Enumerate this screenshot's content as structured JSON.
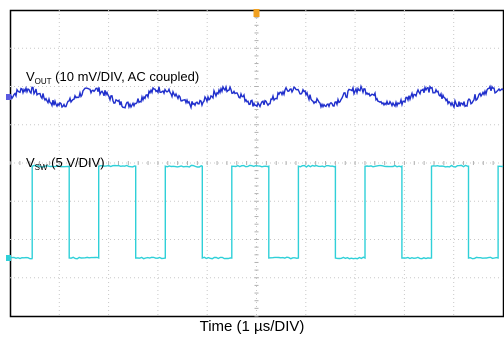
{
  "chart_data": {
    "type": "line",
    "title": "",
    "xlabel": "Time (1 µs/DIV)",
    "grid": true,
    "grid_divisions": {
      "x": 10,
      "y": 8
    },
    "x_unit": "µs",
    "x_range_us": [
      0,
      10
    ],
    "series": [
      {
        "name_main": "V",
        "name_sub": "OUT",
        "name_rest": " (10 mV/DIV, AC coupled)",
        "color": "#1f2ecc",
        "marker_color": "#5a5ae0",
        "coupling": "AC",
        "scale_mV_per_div": 10,
        "ripple_period_us": 1.35,
        "ripple_peak_to_peak_mV": 4,
        "noise_mV": 0.6
      },
      {
        "name_main": "V",
        "name_sub": "SW",
        "name_rest": " (5 V/DIV)",
        "color": "#2fd0d8",
        "marker_color": "#2fd0d8",
        "scale_V_per_div": 5,
        "low_V": 0,
        "high_V": 12,
        "period_us": 1.35,
        "rise_us": [
          0.45,
          1.8,
          3.15,
          4.5,
          5.85,
          7.2,
          8.55,
          9.9
        ],
        "fall_us": [
          1.2,
          2.55,
          3.9,
          5.25,
          6.6,
          7.95,
          9.3
        ]
      }
    ],
    "trigger_marker_color": "#f0a020"
  }
}
